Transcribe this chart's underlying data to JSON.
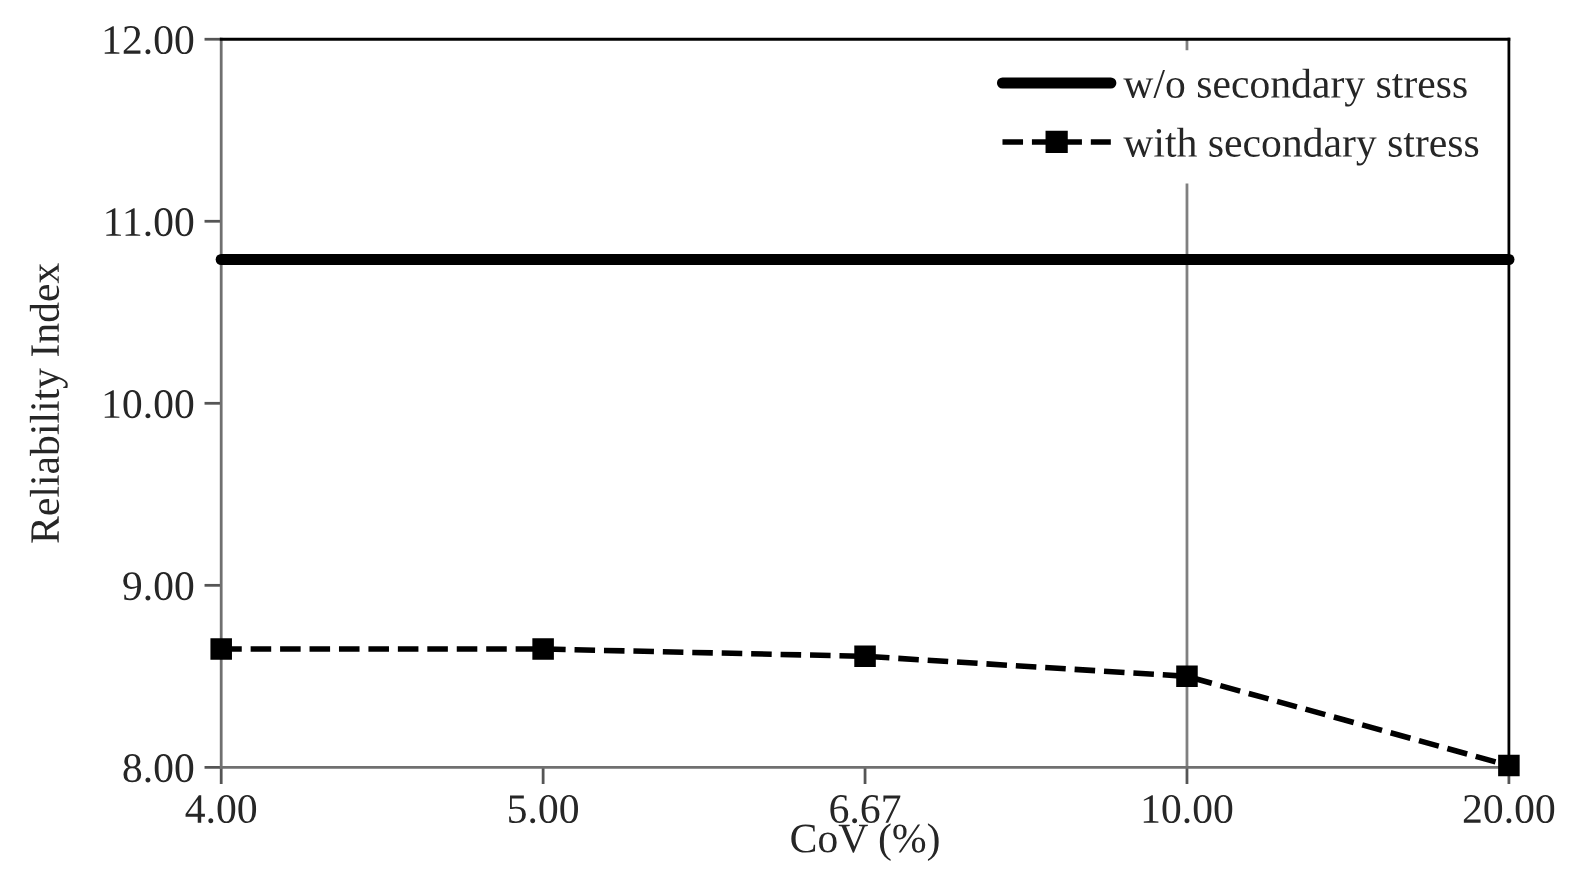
{
  "chart_data": {
    "type": "line",
    "xlabel": "CoV (%)",
    "ylabel": "Reliability Index",
    "categories": [
      "4.00",
      "5.00",
      "6.67",
      "10.00",
      "20.00"
    ],
    "series": [
      {
        "name": "w/o secondary stress",
        "color": "#000000",
        "values": [
          10.79,
          10.79,
          10.79,
          10.79,
          10.79
        ],
        "line_style": "solid",
        "marker": "none"
      },
      {
        "name": "with secondary stress",
        "color": "#000000",
        "values": [
          8.65,
          8.65,
          8.61,
          8.5,
          8.01
        ],
        "line_style": "dashed",
        "marker": "square"
      }
    ],
    "ylim": [
      8,
      12
    ],
    "yticks": [
      {
        "value": 8,
        "label": "8.00"
      },
      {
        "value": 9,
        "label": "9.00"
      },
      {
        "value": 10,
        "label": "10.00"
      },
      {
        "value": 11,
        "label": "11.00"
      },
      {
        "value": 12,
        "label": "12.00"
      }
    ],
    "ref_lines": [
      {
        "axis": "x",
        "value": "10.00",
        "color": "#808080"
      }
    ],
    "grid": false,
    "legend": "top right"
  }
}
